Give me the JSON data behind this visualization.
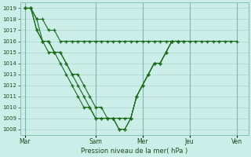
{
  "title": "",
  "xlabel": "Pression niveau de la mer( hPa )",
  "ylabel": "",
  "bg_color": "#cceee8",
  "grid_color": "#aad4cc",
  "line_color": "#1a6b1a",
  "ylim": [
    1007.5,
    1019.5
  ],
  "yticks": [
    1008,
    1009,
    1010,
    1011,
    1012,
    1013,
    1014,
    1015,
    1016,
    1017,
    1018,
    1019
  ],
  "xlim": [
    -5,
    228
  ],
  "day_ticks": [
    0,
    72,
    120,
    168,
    216
  ],
  "day_labels": [
    "Mar",
    "Sam",
    "Mer",
    "Jeu",
    "Ven"
  ],
  "series": [
    [
      1019,
      1019,
      1018,
      1018,
      1017,
      1017,
      1016,
      1016,
      1016,
      1016,
      1016,
      1016,
      1016,
      1016,
      1016,
      1016,
      1016,
      1016,
      1016,
      1016,
      1016,
      1016,
      1016,
      1016,
      1016,
      1016,
      1016,
      1016,
      1016,
      1016,
      1016,
      1016,
      1016,
      1016,
      1016,
      1016,
      1016
    ],
    [
      1019,
      1019,
      1017,
      1016,
      1016,
      1015,
      1015,
      1014,
      1013,
      1013,
      1012,
      1011,
      1010,
      1010,
      1009,
      1009,
      1008,
      1008,
      1009,
      1011,
      1012,
      1013,
      1014,
      1014,
      1015,
      1016,
      1016,
      1016
    ],
    [
      1019,
      1019,
      1017,
      1016,
      1015,
      1015,
      1015,
      1014,
      1013,
      1012,
      1011,
      1010,
      1009,
      1009,
      1009,
      1009,
      1009,
      1009,
      1009,
      1011,
      1012,
      1013,
      1014,
      1014,
      1015,
      1016,
      1016
    ],
    [
      1019,
      1019,
      1018,
      1016,
      1016,
      1015,
      1014,
      1013,
      1012,
      1011,
      1010,
      1010,
      1009,
      1009,
      1009,
      1009,
      1008,
      1008,
      1009,
      1011,
      1012,
      1013,
      1014,
      1014,
      1015,
      1016,
      1016
    ]
  ],
  "series_x": [
    [
      0,
      6,
      12,
      18,
      24,
      30,
      36,
      42,
      48,
      54,
      60,
      66,
      72,
      78,
      84,
      90,
      96,
      102,
      108,
      114,
      120,
      126,
      132,
      138,
      144,
      150,
      156,
      162,
      168,
      174,
      180,
      186,
      192,
      198,
      204,
      210,
      216
    ],
    [
      0,
      6,
      12,
      18,
      24,
      30,
      36,
      42,
      48,
      54,
      60,
      66,
      72,
      78,
      84,
      90,
      96,
      102,
      108,
      114,
      120,
      126,
      132,
      138,
      144,
      150,
      156,
      162
    ],
    [
      0,
      6,
      12,
      18,
      24,
      30,
      36,
      42,
      48,
      54,
      60,
      66,
      72,
      78,
      84,
      90,
      96,
      102,
      108,
      114,
      120,
      126,
      132,
      138,
      144,
      150,
      156
    ],
    [
      0,
      6,
      12,
      18,
      24,
      30,
      36,
      42,
      48,
      54,
      60,
      66,
      72,
      78,
      84,
      90,
      96,
      102,
      108,
      114,
      120,
      126,
      132,
      138,
      144,
      150,
      156
    ]
  ]
}
